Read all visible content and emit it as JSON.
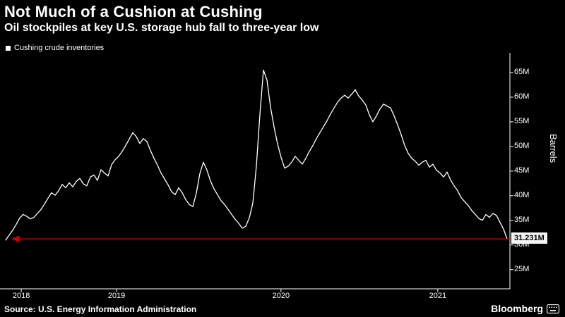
{
  "header": {
    "title": "Not Much of a Cushion at Cushing",
    "subtitle": "Oil stockpiles at key U.S. storage hub fall to three-year low"
  },
  "legend": {
    "label": "Cushing crude inventories"
  },
  "chart_data": {
    "type": "line",
    "title": "Not Much of a Cushion at Cushing",
    "subtitle": "Oil stockpiles at key U.S. storage hub fall to three-year low",
    "xlabel": "",
    "ylabel": "Barrels",
    "grid": false,
    "legend_position": "top-left",
    "ylim": [
      21.1,
      69.0
    ],
    "x_range_note": "weekly data, early 2018 through late 2021",
    "x_ticks": [
      {
        "label": "2018",
        "pos": 0.031
      },
      {
        "label": "2019",
        "pos": 0.22
      },
      {
        "label": "2020",
        "pos": 0.546
      },
      {
        "label": "2021",
        "pos": 0.857
      }
    ],
    "y_ticks": [
      {
        "label": "25M",
        "value": 25
      },
      {
        "label": "30M",
        "value": 30
      },
      {
        "label": "35M",
        "value": 35
      },
      {
        "label": "40M",
        "value": 40
      },
      {
        "label": "45M",
        "value": 45
      },
      {
        "label": "50M",
        "value": 50
      },
      {
        "label": "55M",
        "value": 55
      },
      {
        "label": "60M",
        "value": 60
      },
      {
        "label": "65M",
        "value": 65
      }
    ],
    "series": [
      {
        "name": "Cushing crude inventories",
        "unit": "million barrels",
        "color": "#ffffff",
        "values": [
          31.0,
          32.0,
          33.0,
          34.2,
          35.5,
          36.2,
          35.8,
          35.3,
          35.6,
          36.4,
          37.2,
          38.3,
          39.5,
          40.6,
          40.1,
          41.0,
          42.3,
          41.6,
          42.6,
          41.8,
          42.9,
          43.5,
          42.4,
          42.0,
          43.8,
          44.2,
          43.1,
          45.3,
          44.6,
          44.0,
          46.3,
          47.3,
          48.0,
          49.0,
          50.2,
          51.5,
          52.8,
          52.0,
          50.6,
          51.6,
          51.0,
          49.2,
          47.6,
          46.2,
          44.6,
          43.4,
          42.2,
          40.8,
          40.2,
          41.6,
          40.6,
          39.2,
          38.2,
          37.8,
          40.5,
          44.5,
          46.8,
          45.2,
          43.0,
          41.4,
          40.2,
          39.0,
          38.2,
          37.2,
          36.2,
          35.2,
          34.4,
          33.4,
          33.8,
          35.5,
          38.5,
          46.0,
          56.5,
          65.5,
          63.5,
          58.0,
          54.0,
          50.5,
          47.8,
          45.6,
          46.0,
          46.8,
          48.0,
          47.2,
          46.4,
          47.6,
          49.0,
          50.2,
          51.6,
          52.8,
          54.0,
          55.2,
          56.6,
          57.8,
          59.0,
          59.8,
          60.4,
          59.8,
          60.6,
          61.5,
          60.2,
          59.4,
          58.4,
          56.4,
          55.0,
          56.2,
          57.6,
          58.6,
          58.2,
          57.8,
          56.2,
          54.4,
          52.4,
          50.2,
          48.6,
          47.6,
          47.0,
          46.2,
          46.8,
          47.2,
          45.8,
          46.4,
          45.2,
          44.6,
          43.8,
          44.8,
          43.2,
          42.0,
          41.0,
          39.6,
          38.8,
          38.0,
          37.0,
          36.2,
          35.4,
          35.0,
          36.2,
          35.6,
          36.4,
          36.0,
          34.6,
          33.2,
          31.231
        ]
      }
    ],
    "annotation": {
      "type": "level-line-with-left-arrow",
      "value": 31.231,
      "label": "31.231M",
      "color": "#d40000"
    }
  },
  "footer": {
    "source": "Source: U.S. Energy Information Administration",
    "brand": "Bloomberg"
  },
  "colors": {
    "background": "#000000",
    "text": "#ffffff",
    "axis": "#ffffff",
    "series": "#ffffff",
    "annotation": "#d40000",
    "annotation_label_bg": "#f4f4f4",
    "annotation_label_text": "#000000"
  }
}
